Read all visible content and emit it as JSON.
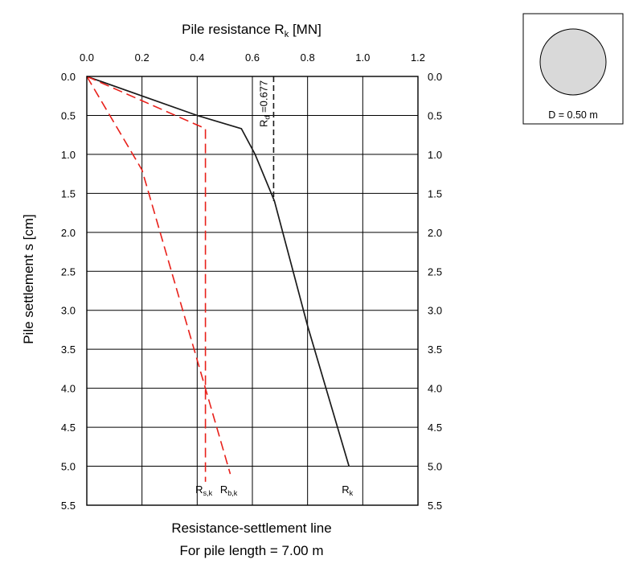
{
  "chart_data": {
    "type": "line",
    "title": "Resistance-settlement line",
    "subtitle": "For pile length = 7.00 m",
    "x_axis": {
      "label_main": "Pile resistance R",
      "label_sub": "k",
      "label_unit": " [MN]",
      "range": [
        0.0,
        1.2
      ],
      "ticks": [
        0.0,
        0.2,
        0.4,
        0.6,
        0.8,
        1.0,
        1.2
      ],
      "tick_labels": [
        "0.0",
        "0.2",
        "0.4",
        "0.6",
        "0.8",
        "1.0",
        "1.2"
      ],
      "position": "top"
    },
    "y_axis": {
      "label": "Pile settlement s [cm]",
      "range": [
        0.0,
        5.5
      ],
      "inverted": true,
      "ticks": [
        0.0,
        0.5,
        1.0,
        1.5,
        2.0,
        2.5,
        3.0,
        3.5,
        4.0,
        4.5,
        5.0,
        5.5
      ],
      "tick_labels": [
        "0.0",
        "0.5",
        "1.0",
        "1.5",
        "2.0",
        "2.5",
        "3.0",
        "3.5",
        "4.0",
        "4.5",
        "5.0",
        "5.5"
      ],
      "mirrored_right": true
    },
    "grid": true,
    "series": [
      {
        "key": "Rk",
        "label_main": "R",
        "label_sub": "k",
        "color": "#1a1a1a",
        "style": "solid",
        "points": [
          [
            0.0,
            0.0
          ],
          [
            0.4,
            0.5
          ],
          [
            0.56,
            0.67
          ],
          [
            0.61,
            1.0
          ],
          [
            0.68,
            1.6
          ],
          [
            0.8,
            3.2
          ],
          [
            0.95,
            5.0
          ]
        ]
      },
      {
        "key": "Rsk",
        "label_main": "R",
        "label_sub": "s,k",
        "color": "#e8201a",
        "style": "dashed",
        "points": [
          [
            0.0,
            0.0
          ],
          [
            0.43,
            0.67
          ],
          [
            0.43,
            5.2
          ]
        ]
      },
      {
        "key": "Rbk",
        "label_main": "R",
        "label_sub": "b,k",
        "color": "#e8201a",
        "style": "dashed",
        "points": [
          [
            0.0,
            0.0
          ],
          [
            0.2,
            1.2
          ],
          [
            0.52,
            5.1
          ]
        ]
      }
    ],
    "design_line": {
      "label_main": "R",
      "label_sub": "d",
      "label_value": " =0.677",
      "value": 0.677,
      "y_range": [
        0.0,
        1.6
      ],
      "color": "#1a1a1a",
      "style": "dashed"
    }
  },
  "pile_cross_section": {
    "label": "D = 0.50 m",
    "fill_color": "#d9d9d9"
  }
}
